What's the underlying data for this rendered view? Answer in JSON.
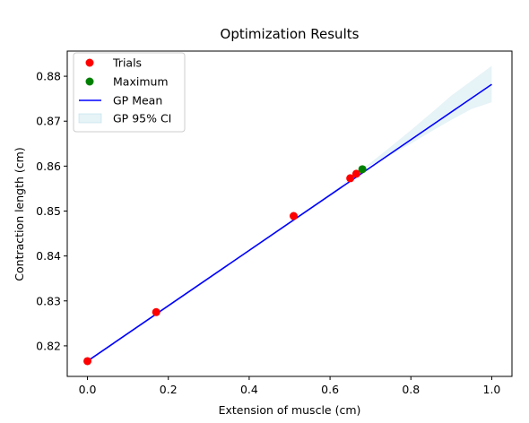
{
  "chart_data": {
    "type": "scatter",
    "title": "Optimization Results",
    "xlabel": "Extension of muscle (cm)",
    "ylabel": "Contraction length (cm)",
    "xlim": [
      -0.05,
      1.05
    ],
    "ylim": [
      0.8132,
      0.8856
    ],
    "x_ticks": [
      0.0,
      0.2,
      0.4,
      0.6,
      0.8,
      1.0
    ],
    "x_tick_labels": [
      "0.0",
      "0.2",
      "0.4",
      "0.6",
      "0.8",
      "1.0"
    ],
    "y_ticks": [
      0.82,
      0.83,
      0.84,
      0.85,
      0.86,
      0.87,
      0.88
    ],
    "y_tick_labels": [
      "0.82",
      "0.83",
      "0.84",
      "0.85",
      "0.86",
      "0.87",
      "0.88"
    ],
    "grid": false,
    "legend_position": "top-left",
    "series": [
      {
        "name": "Trials",
        "kind": "scatter",
        "color": "#ff0000",
        "points": [
          {
            "x": 0.0,
            "y": 0.8166
          },
          {
            "x": 0.17,
            "y": 0.8275
          },
          {
            "x": 0.51,
            "y": 0.8489
          },
          {
            "x": 0.65,
            "y": 0.8573
          },
          {
            "x": 0.665,
            "y": 0.8583
          }
        ]
      },
      {
        "name": "Maximum",
        "kind": "scatter",
        "color": "#008000",
        "points": [
          {
            "x": 0.68,
            "y": 0.8593
          }
        ]
      },
      {
        "name": "GP Mean",
        "kind": "line",
        "color": "#0000ff",
        "points": [
          {
            "x": 0.0,
            "y": 0.8166
          },
          {
            "x": 1.0,
            "y": 0.8782
          }
        ]
      },
      {
        "name": "GP 95% CI",
        "kind": "band",
        "color": "#add8e6",
        "x": [
          0.0,
          0.1,
          0.2,
          0.3,
          0.4,
          0.5,
          0.6,
          0.68,
          0.75,
          0.8,
          0.85,
          0.9,
          0.95,
          1.0
        ],
        "lower": [
          0.8164,
          0.8226,
          0.8288,
          0.8349,
          0.8411,
          0.8473,
          0.8535,
          0.8593,
          0.8625,
          0.865,
          0.8677,
          0.8703,
          0.8727,
          0.8742
        ],
        "upper": [
          0.8168,
          0.823,
          0.8292,
          0.8353,
          0.8415,
          0.8477,
          0.8539,
          0.8593,
          0.8643,
          0.868,
          0.8718,
          0.8757,
          0.879,
          0.8823
        ]
      }
    ]
  }
}
